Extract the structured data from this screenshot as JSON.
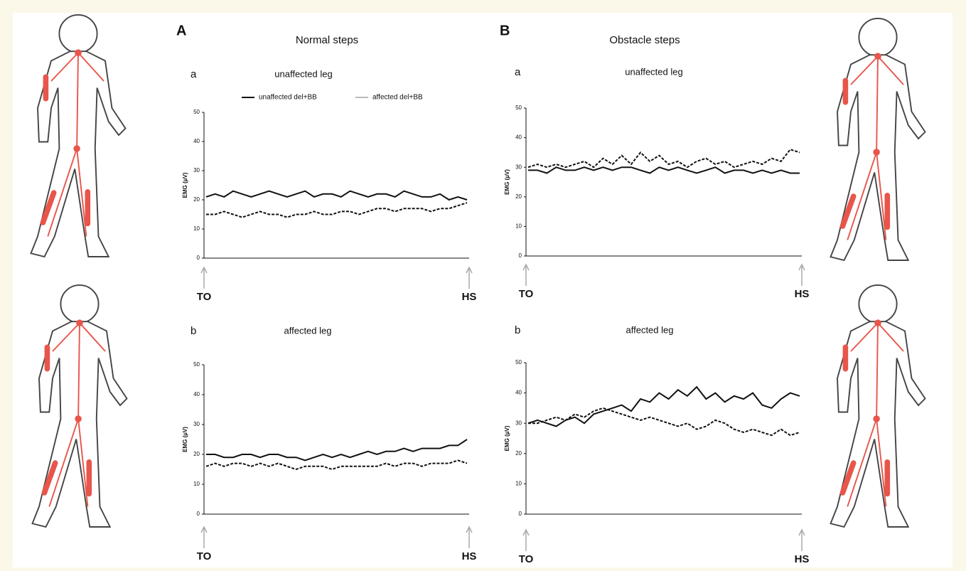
{
  "panels": [
    {
      "letter": "A",
      "title": "Normal steps"
    },
    {
      "letter": "B",
      "title": "Obstacle steps"
    }
  ],
  "legend": [
    {
      "name": "unaffected del+BB",
      "color": "#111111"
    },
    {
      "name": "affected del+BB",
      "color": "#bbbbbb"
    }
  ],
  "chart_data": [
    {
      "type": "line",
      "subtitle": "a",
      "title": "unaffected leg",
      "y_label": "EMG (µV)",
      "ylim": [
        0,
        50
      ],
      "yticks": [
        0,
        10,
        20,
        30,
        40,
        50
      ],
      "categories": [
        "TO",
        null,
        null,
        null,
        null,
        null,
        null,
        null,
        null,
        null,
        null,
        null,
        null,
        null,
        null,
        null,
        null,
        null,
        null,
        null,
        null,
        null,
        null,
        null,
        null,
        null,
        null,
        null,
        null,
        "HS"
      ],
      "series": [
        {
          "color": "#111111",
          "dashed": false,
          "values": [
            21,
            22,
            21,
            23,
            22,
            21,
            22,
            23,
            22,
            21,
            22,
            23,
            21,
            22,
            22,
            21,
            23,
            22,
            21,
            22,
            22,
            21,
            23,
            22,
            21,
            21,
            22,
            20,
            21,
            20
          ]
        },
        {
          "color": "#111111",
          "dashed": true,
          "values": [
            15,
            15,
            16,
            15,
            14,
            15,
            16,
            15,
            15,
            14,
            15,
            15,
            16,
            15,
            15,
            16,
            16,
            15,
            16,
            17,
            17,
            16,
            17,
            17,
            17,
            16,
            17,
            17,
            18,
            19
          ]
        }
      ]
    },
    {
      "type": "line",
      "subtitle": "b",
      "title": "affected leg",
      "y_label": "EMG (µV)",
      "ylim": [
        0,
        50
      ],
      "yticks": [
        0,
        10,
        20,
        30,
        40,
        50
      ],
      "categories": [
        "TO",
        null,
        null,
        null,
        null,
        null,
        null,
        null,
        null,
        null,
        null,
        null,
        null,
        null,
        null,
        null,
        null,
        null,
        null,
        null,
        null,
        null,
        null,
        null,
        null,
        null,
        null,
        null,
        null,
        "HS"
      ],
      "series": [
        {
          "color": "#111111",
          "dashed": false,
          "values": [
            20,
            20,
            19,
            19,
            20,
            20,
            19,
            20,
            20,
            19,
            19,
            18,
            19,
            20,
            19,
            20,
            19,
            20,
            21,
            20,
            21,
            21,
            22,
            21,
            22,
            22,
            22,
            23,
            23,
            25
          ]
        },
        {
          "color": "#111111",
          "dashed": true,
          "values": [
            16,
            17,
            16,
            17,
            17,
            16,
            17,
            16,
            17,
            16,
            15,
            16,
            16,
            16,
            15,
            16,
            16,
            16,
            16,
            16,
            17,
            16,
            17,
            17,
            16,
            17,
            17,
            17,
            18,
            17
          ]
        }
      ]
    },
    {
      "type": "line",
      "subtitle": "a",
      "title": "unaffected leg",
      "y_label": "EMG (µV)",
      "ylim": [
        0,
        50
      ],
      "yticks": [
        0,
        10,
        20,
        30,
        40,
        50
      ],
      "categories": [
        "TO",
        null,
        null,
        null,
        null,
        null,
        null,
        null,
        null,
        null,
        null,
        null,
        null,
        null,
        null,
        null,
        null,
        null,
        null,
        null,
        null,
        null,
        null,
        null,
        null,
        null,
        null,
        null,
        null,
        "HS"
      ],
      "series": [
        {
          "color": "#111111",
          "dashed": false,
          "values": [
            29,
            29,
            28,
            30,
            29,
            29,
            30,
            29,
            30,
            29,
            30,
            30,
            29,
            28,
            30,
            29,
            30,
            29,
            28,
            29,
            30,
            28,
            29,
            29,
            28,
            29,
            28,
            29,
            28,
            28
          ]
        },
        {
          "color": "#111111",
          "dashed": true,
          "values": [
            30,
            31,
            30,
            31,
            30,
            31,
            32,
            30,
            33,
            31,
            34,
            31,
            35,
            32,
            34,
            31,
            32,
            30,
            32,
            33,
            31,
            32,
            30,
            31,
            32,
            31,
            33,
            32,
            36,
            35
          ]
        }
      ]
    },
    {
      "type": "line",
      "subtitle": "b",
      "title": "affected leg",
      "y_label": "EMG (µV)",
      "ylim": [
        0,
        50
      ],
      "yticks": [
        0,
        10,
        20,
        30,
        40,
        50
      ],
      "categories": [
        "TO",
        null,
        null,
        null,
        null,
        null,
        null,
        null,
        null,
        null,
        null,
        null,
        null,
        null,
        null,
        null,
        null,
        null,
        null,
        null,
        null,
        null,
        null,
        null,
        null,
        null,
        null,
        null,
        null,
        "HS"
      ],
      "series": [
        {
          "color": "#111111",
          "dashed": false,
          "values": [
            30,
            31,
            30,
            29,
            31,
            32,
            30,
            33,
            34,
            35,
            36,
            34,
            38,
            37,
            40,
            38,
            41,
            39,
            42,
            38,
            40,
            37,
            39,
            38,
            40,
            36,
            35,
            38,
            40,
            39
          ]
        },
        {
          "color": "#111111",
          "dashed": true,
          "values": [
            30,
            30,
            31,
            32,
            31,
            33,
            32,
            34,
            35,
            34,
            33,
            32,
            31,
            32,
            31,
            30,
            29,
            30,
            28,
            29,
            31,
            30,
            28,
            27,
            28,
            27,
            26,
            28,
            26,
            27
          ]
        }
      ]
    }
  ]
}
